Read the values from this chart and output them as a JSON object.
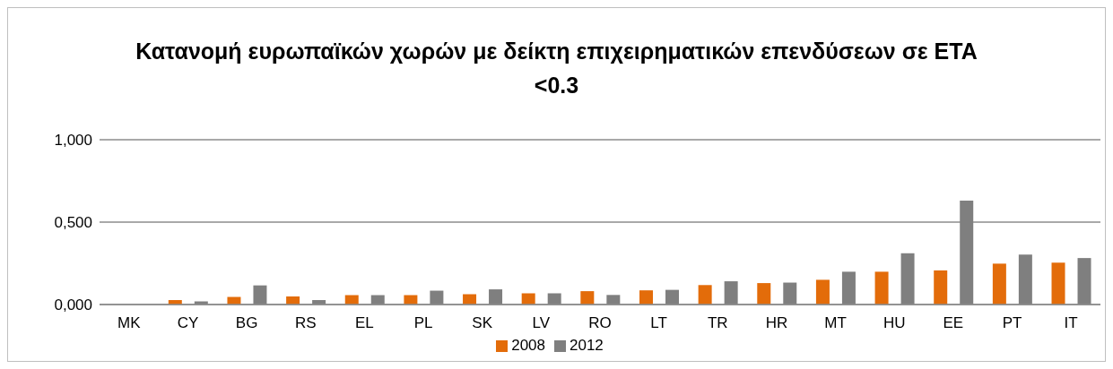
{
  "chart_data": {
    "type": "bar",
    "title": "Κατανομή ευρωπαϊκών χωρών με δείκτη επιχειρηματικών επενδύσεων σε ΕΤΑ <0.3",
    "categories": [
      "MK",
      "CY",
      "BG",
      "RS",
      "EL",
      "PL",
      "SK",
      "LV",
      "RO",
      "LT",
      "TR",
      "HR",
      "MT",
      "HU",
      "EE",
      "PT",
      "IT"
    ],
    "series": [
      {
        "name": "2008",
        "color": "#e36c0a",
        "values": [
          0,
          0.027,
          0.046,
          0.049,
          0.057,
          0.057,
          0.062,
          0.068,
          0.081,
          0.086,
          0.118,
          0.13,
          0.15,
          0.199,
          0.207,
          0.248,
          0.254
        ]
      },
      {
        "name": "2012",
        "color": "#7f7f7f",
        "values": [
          0,
          0.019,
          0.116,
          0.027,
          0.057,
          0.084,
          0.092,
          0.068,
          0.058,
          0.089,
          0.141,
          0.133,
          0.199,
          0.311,
          0.631,
          0.303,
          0.282
        ]
      }
    ],
    "ylim": [
      0,
      1
    ],
    "yticks": [
      {
        "value": 0,
        "label": "0,000"
      },
      {
        "value": 0.5,
        "label": "0,500"
      },
      {
        "value": 1,
        "label": "1,000"
      }
    ],
    "grid": "y",
    "legend": "bottom"
  }
}
